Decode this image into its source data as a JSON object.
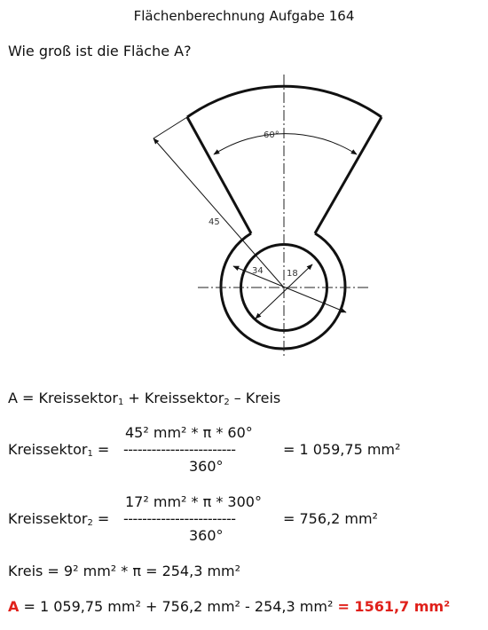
{
  "header": {
    "title": "Flächenberechnung Aufgabe 164"
  },
  "question": "Wie groß ist die Fläche A?",
  "figure": {
    "angle_label": "60°",
    "dim_outer": "45",
    "dim_34": "34",
    "dim_18": "18"
  },
  "solution": {
    "formula": {
      "prefix": "A = Kreissektor",
      "s1": "1",
      "mid": " + Kreissektor",
      "s2": "2",
      "suffix": " – Kreis"
    },
    "sector1": {
      "lhs": "Kreissektor",
      "sub": "1",
      "eq": " =",
      "numerator": "45² mm² * π * 60°",
      "bar": "------------------------",
      "denominator": "360°",
      "result": "= 1 059,75 mm²"
    },
    "sector2": {
      "lhs": "Kreissektor",
      "sub": "2",
      "eq": " =",
      "numerator": "17² mm² * π * 300°",
      "bar": "------------------------",
      "denominator": "360°",
      "result": "= 756,2 mm²"
    },
    "circle": "Kreis = 9² mm² * π = 254,3 mm²",
    "final": {
      "label": "A",
      "expression": " = 1 059,75 mm² + 756,2 mm² - 254,3 mm² ",
      "result": "= 1561,7 mm²"
    }
  }
}
